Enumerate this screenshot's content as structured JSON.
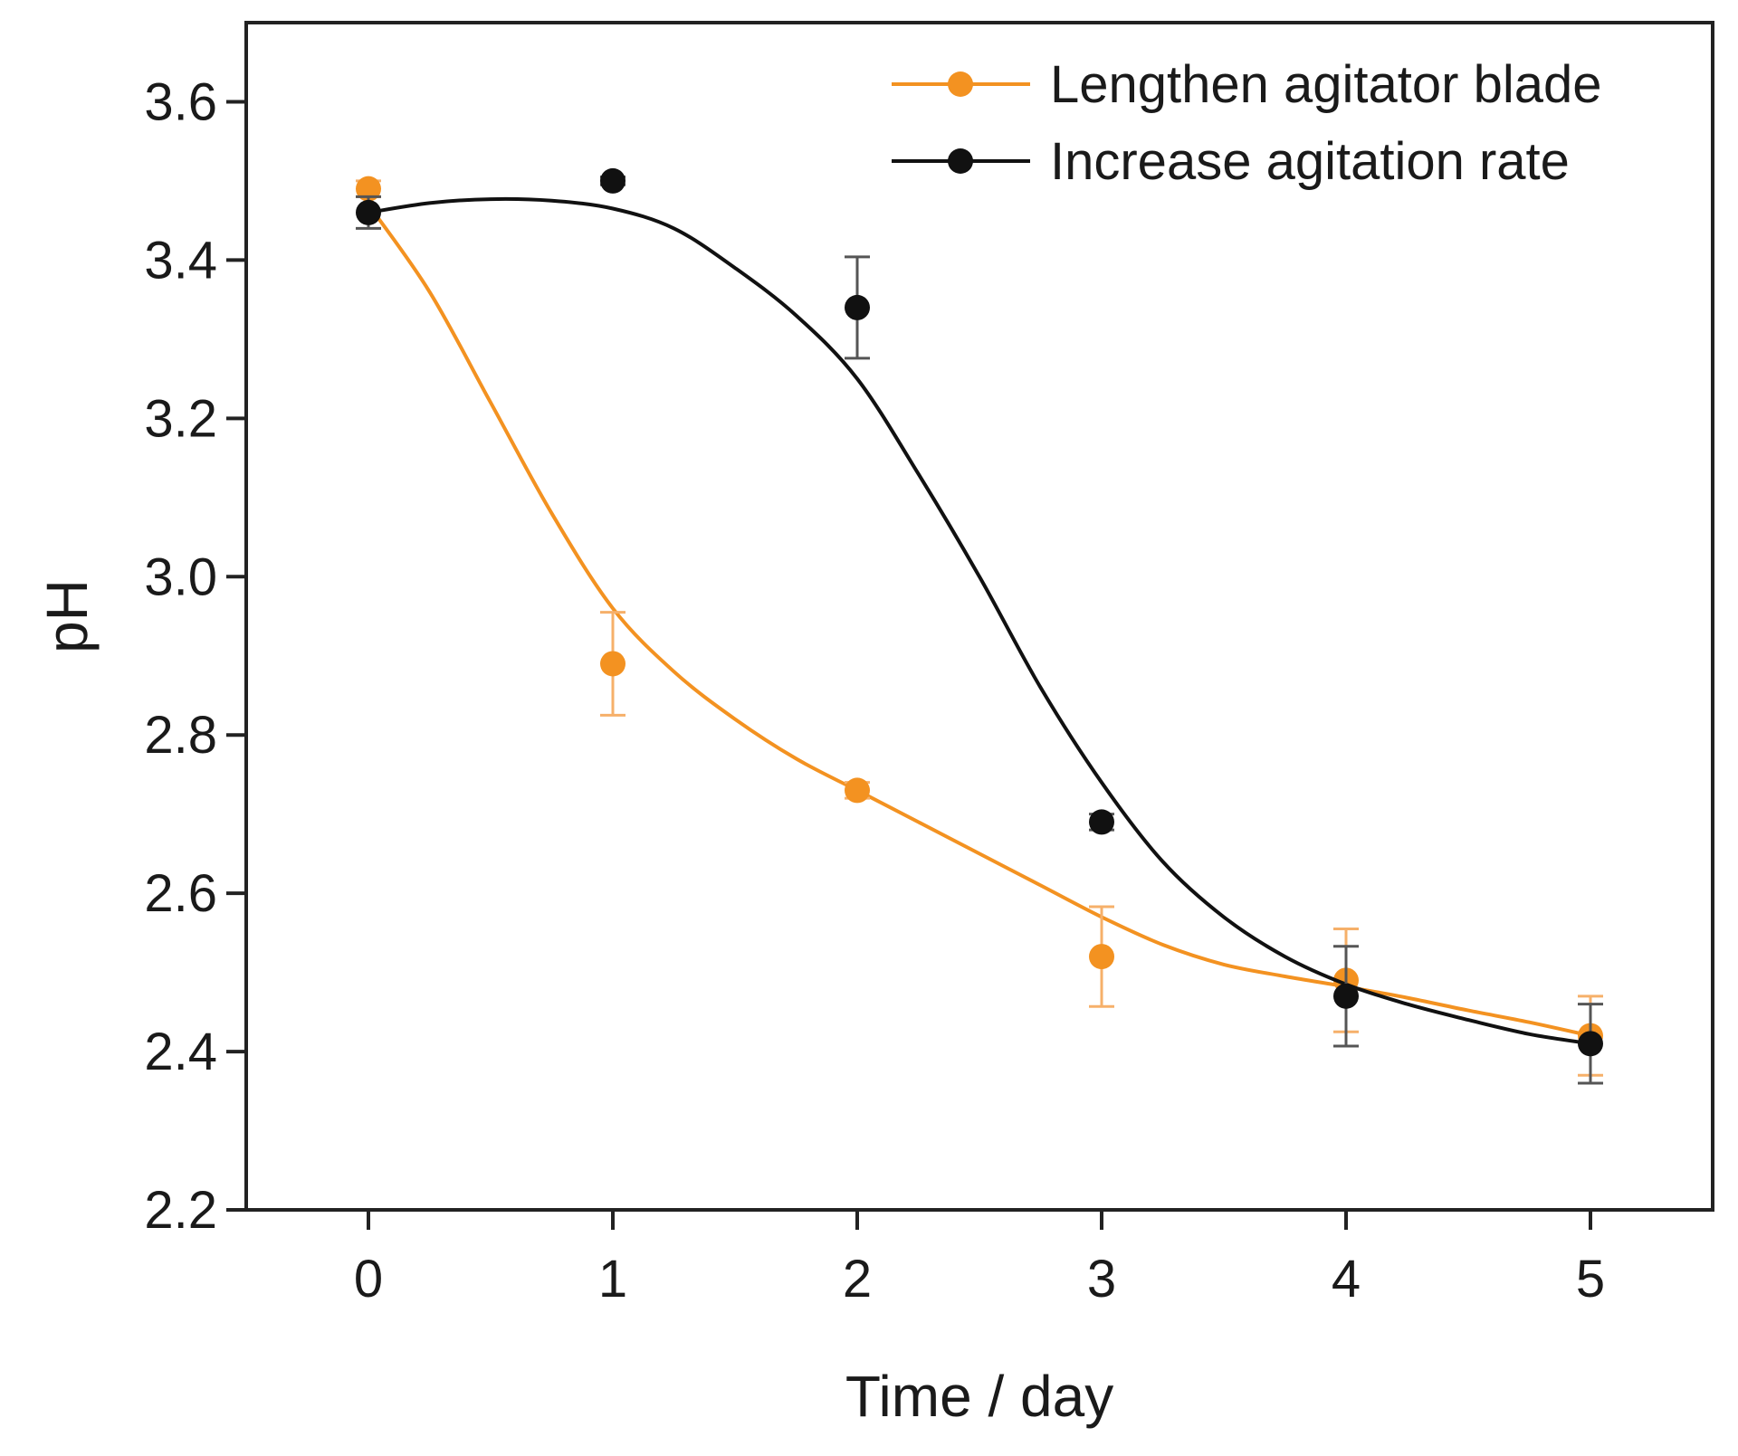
{
  "chart_data": {
    "type": "line",
    "title": "",
    "xlabel": "Time / day",
    "ylabel": "pH",
    "xlim": [
      -0.5,
      5.5
    ],
    "ylim": [
      2.2,
      3.7
    ],
    "xticks": [
      0,
      1,
      2,
      3,
      4,
      5
    ],
    "xtick_labels": [
      "0",
      "1",
      "2",
      "3",
      "4",
      "5"
    ],
    "yticks": [
      2.2,
      2.4,
      2.6,
      2.8,
      3.0,
      3.2,
      3.4,
      3.6
    ],
    "ytick_labels": [
      "2.2",
      "2.4",
      "2.6",
      "2.8",
      "3.0",
      "3.2",
      "3.4",
      "3.6"
    ],
    "grid": false,
    "legend_position": "top-right",
    "series": [
      {
        "name": "Lengthen agitator blade",
        "color": "#f39221",
        "x": [
          0,
          1,
          2,
          3,
          4,
          5
        ],
        "y": [
          3.49,
          2.89,
          2.73,
          2.52,
          2.49,
          2.42
        ],
        "error": [
          0.01,
          0.065,
          0.01,
          0.063,
          0.065,
          0.05
        ],
        "fit": {
          "x": [
            0,
            0.25,
            0.5,
            0.75,
            1,
            1.25,
            1.5,
            1.75,
            2,
            2.25,
            2.5,
            2.75,
            3,
            3.25,
            3.5,
            3.75,
            4,
            4.25,
            4.5,
            4.75,
            5
          ],
          "y": [
            3.47,
            3.36,
            3.22,
            3.08,
            2.96,
            2.88,
            2.82,
            2.77,
            2.73,
            2.69,
            2.65,
            2.61,
            2.57,
            2.535,
            2.51,
            2.495,
            2.482,
            2.468,
            2.452,
            2.437,
            2.42
          ]
        }
      },
      {
        "name": "Increase agitation rate",
        "color": "#111111",
        "x": [
          0,
          1,
          2,
          3,
          4,
          5
        ],
        "y": [
          3.46,
          3.5,
          3.34,
          2.69,
          2.47,
          2.41
        ],
        "error": [
          0.02,
          0.005,
          0.064,
          0.01,
          0.063,
          0.05
        ],
        "fit": {
          "x": [
            0,
            0.25,
            0.5,
            0.75,
            1,
            1.25,
            1.5,
            1.75,
            2,
            2.25,
            2.5,
            2.75,
            3,
            3.25,
            3.5,
            3.75,
            4,
            4.25,
            4.5,
            4.75,
            5
          ],
          "y": [
            3.46,
            3.472,
            3.477,
            3.475,
            3.465,
            3.44,
            3.39,
            3.33,
            3.25,
            3.13,
            3.0,
            2.86,
            2.74,
            2.64,
            2.57,
            2.52,
            2.485,
            2.46,
            2.44,
            2.422,
            2.41
          ]
        }
      }
    ]
  }
}
